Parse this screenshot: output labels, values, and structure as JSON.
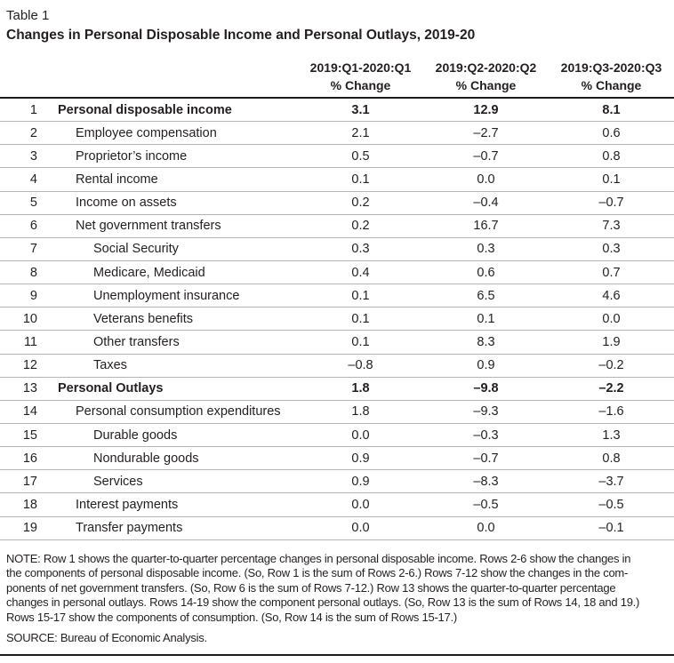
{
  "table_label": "Table 1",
  "title": "Changes in Personal Disposable Income and Personal Outlays, 2019-20",
  "colors": {
    "text": "#231f20",
    "heavy_rule": "#1c1c1c",
    "row_separator": "#b5b5b5",
    "background": "#ffffff"
  },
  "table": {
    "columns": [
      {
        "period": "2019:Q1-2020:Q1",
        "measure": "% Change"
      },
      {
        "period": "2019:Q2-2020:Q2",
        "measure": "% Change"
      },
      {
        "period": "2019:Q3-2020:Q3",
        "measure": "% Change"
      }
    ],
    "rows": [
      {
        "num": "1",
        "label": "Personal disposable income",
        "indent": 0,
        "bold": true,
        "values": [
          "3.1",
          "12.9",
          "8.1"
        ]
      },
      {
        "num": "2",
        "label": "Employee compensation",
        "indent": 1,
        "bold": false,
        "values": [
          "2.1",
          "–2.7",
          "0.6"
        ]
      },
      {
        "num": "3",
        "label": "Proprietor’s income",
        "indent": 1,
        "bold": false,
        "values": [
          "0.5",
          "–0.7",
          "0.8"
        ]
      },
      {
        "num": "4",
        "label": "Rental income",
        "indent": 1,
        "bold": false,
        "values": [
          "0.1",
          "0.0",
          "0.1"
        ]
      },
      {
        "num": "5",
        "label": "Income on assets",
        "indent": 1,
        "bold": false,
        "values": [
          "0.2",
          "–0.4",
          "–0.7"
        ]
      },
      {
        "num": "6",
        "label": "Net government transfers",
        "indent": 1,
        "bold": false,
        "values": [
          "0.2",
          "16.7",
          "7.3"
        ]
      },
      {
        "num": "7",
        "label": "Social Security",
        "indent": 2,
        "bold": false,
        "values": [
          "0.3",
          "0.3",
          "0.3"
        ]
      },
      {
        "num": "8",
        "label": "Medicare, Medicaid",
        "indent": 2,
        "bold": false,
        "values": [
          "0.4",
          "0.6",
          "0.7"
        ]
      },
      {
        "num": "9",
        "label": "Unemployment insurance",
        "indent": 2,
        "bold": false,
        "values": [
          "0.1",
          "6.5",
          "4.6"
        ]
      },
      {
        "num": "10",
        "label": "Veterans benefits",
        "indent": 2,
        "bold": false,
        "values": [
          "0.1",
          "0.1",
          "0.0"
        ]
      },
      {
        "num": "11",
        "label": "Other transfers",
        "indent": 2,
        "bold": false,
        "values": [
          "0.1",
          "8.3",
          "1.9"
        ]
      },
      {
        "num": "12",
        "label": "Taxes",
        "indent": 2,
        "bold": false,
        "values": [
          "–0.8",
          "0.9",
          "–0.2"
        ]
      },
      {
        "num": "13",
        "label": "Personal Outlays",
        "indent": 0,
        "bold": true,
        "values": [
          "1.8",
          "–9.8",
          "–2.2"
        ]
      },
      {
        "num": "14",
        "label": "Personal consumption expenditures",
        "indent": 1,
        "bold": false,
        "values": [
          "1.8",
          "–9.3",
          "–1.6"
        ]
      },
      {
        "num": "15",
        "label": "Durable goods",
        "indent": 2,
        "bold": false,
        "values": [
          "0.0",
          "–0.3",
          "1.3"
        ]
      },
      {
        "num": "16",
        "label": "Nondurable goods",
        "indent": 2,
        "bold": false,
        "values": [
          "0.9",
          "–0.7",
          "0.8"
        ]
      },
      {
        "num": "17",
        "label": "Services",
        "indent": 2,
        "bold": false,
        "values": [
          "0.9",
          "–8.3",
          "–3.7"
        ]
      },
      {
        "num": "18",
        "label": "Interest payments",
        "indent": 1,
        "bold": false,
        "values": [
          "0.0",
          "–0.5",
          "–0.5"
        ]
      },
      {
        "num": "19",
        "label": "Transfer payments",
        "indent": 1,
        "bold": false,
        "values": [
          "0.0",
          "0.0",
          "–0.1"
        ]
      }
    ]
  },
  "note": {
    "lines": [
      "NOTE: Row 1 shows the quarter-to-quarter percentage changes in personal disposable income. Rows 2-6 show the changes in",
      "the components of personal disposable income. (So, Row 1 is the sum of Rows 2-6.) Rows 7-12 show the changes in the com-",
      "ponents of net government transfers. (So, Row 6 is the sum of Rows 7-12.) Row 13 shows the quarter-to-quarter percentage",
      "changes in personal outlays. Rows 14-19 show the component personal outlays. (So, Row 13 is the sum of Rows 14, 18 and 19.)",
      "Rows 15-17 show the components of consumption. (So, Row 14 is the sum of Rows 15-17.)"
    ]
  },
  "source": "SOURCE: Bureau of Economic Analysis."
}
